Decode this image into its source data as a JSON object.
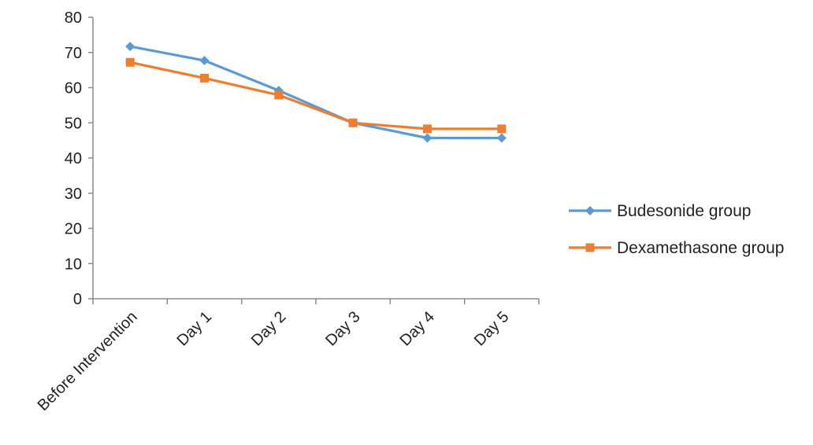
{
  "chart_data": {
    "type": "line",
    "categories": [
      "Before Intervention",
      "Day 1",
      "Day 2",
      "Day 3",
      "Day 4",
      "Day 5"
    ],
    "series": [
      {
        "name": "Budesonide group",
        "values": [
          71.7,
          67.7,
          59.2,
          50.0,
          45.7,
          45.7
        ],
        "color": "#5B9BD5",
        "marker": "diamond"
      },
      {
        "name": "Dexamethasone group",
        "values": [
          67.2,
          62.7,
          57.9,
          50.0,
          48.3,
          48.3
        ],
        "color": "#ED7D31",
        "marker": "square"
      }
    ],
    "ylim": [
      0,
      80
    ],
    "yticks": [
      0,
      10,
      20,
      30,
      40,
      50,
      60,
      70,
      80
    ],
    "title": "",
    "xlabel": "",
    "ylabel": "",
    "grid": false,
    "legend_position": "right"
  }
}
